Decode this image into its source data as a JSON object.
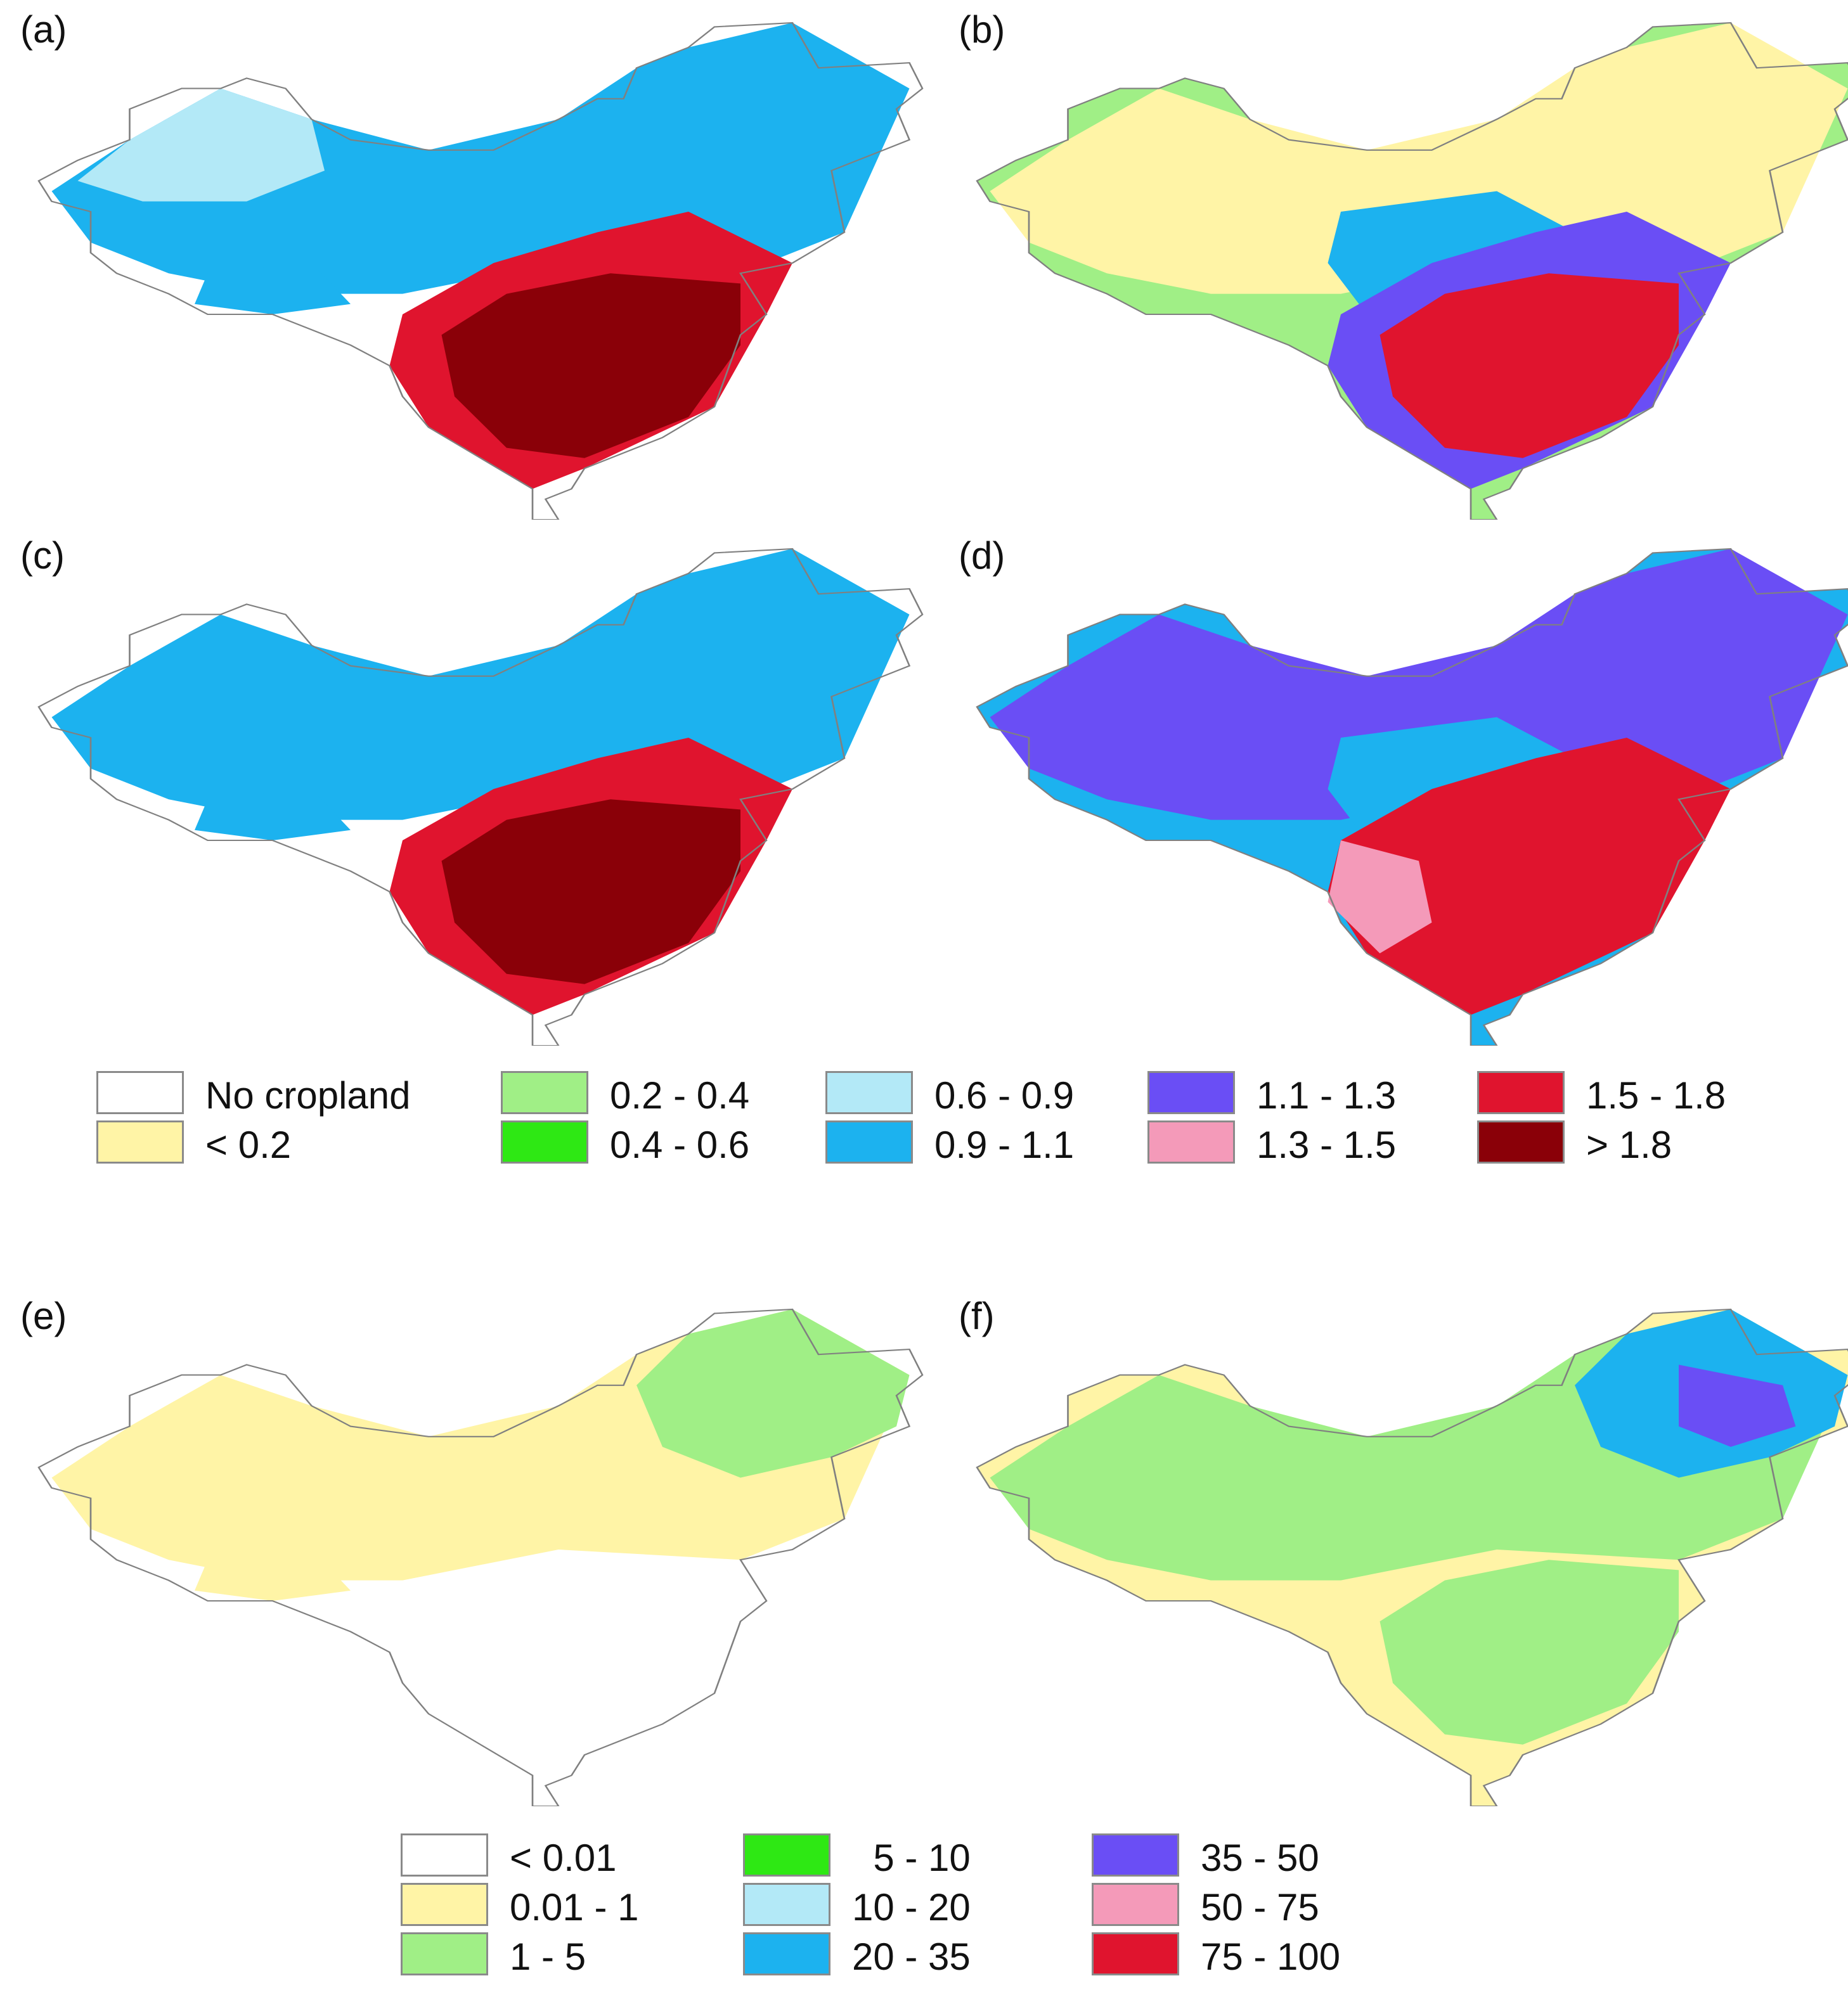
{
  "panels": [
    {
      "id": "a",
      "label": "(a)",
      "palette": "ratio",
      "fills": [
        {
          "color": "#1cb2ef",
          "shape": "north"
        },
        {
          "color": "#e0142e",
          "shape": "south"
        },
        {
          "color": "#8a0008",
          "shape": "southcore"
        },
        {
          "color": "#b3e9f7",
          "shape": "west"
        },
        {
          "color": "#1cb2ef",
          "shape": "westpatch"
        }
      ]
    },
    {
      "id": "b",
      "label": "(b)",
      "palette": "ratio",
      "fills": [
        {
          "color": "#a0ef86",
          "shape": "full"
        },
        {
          "color": "#fff4a6",
          "shape": "north"
        },
        {
          "color": "#1cb2ef",
          "shape": "center"
        },
        {
          "color": "#6a4ef5",
          "shape": "south"
        },
        {
          "color": "#e0142e",
          "shape": "southcore"
        }
      ]
    },
    {
      "id": "c",
      "label": "(c)",
      "palette": "ratio",
      "fills": [
        {
          "color": "#1cb2ef",
          "shape": "north"
        },
        {
          "color": "#e0142e",
          "shape": "south"
        },
        {
          "color": "#8a0008",
          "shape": "southcore"
        },
        {
          "color": "#1cb2ef",
          "shape": "westpatch"
        }
      ]
    },
    {
      "id": "d",
      "label": "(d)",
      "palette": "ratio",
      "fills": [
        {
          "color": "#1cb2ef",
          "shape": "full"
        },
        {
          "color": "#6a4ef5",
          "shape": "north"
        },
        {
          "color": "#1cb2ef",
          "shape": "center"
        },
        {
          "color": "#e0142e",
          "shape": "south"
        },
        {
          "color": "#f49ab9",
          "shape": "southwest"
        }
      ]
    },
    {
      "id": "e",
      "label": "(e)",
      "palette": "pct",
      "fills": [
        {
          "color": "#fff4a6",
          "shape": "north"
        },
        {
          "color": "#a0ef86",
          "shape": "northeast"
        },
        {
          "color": "#fff4a6",
          "shape": "westpatch"
        }
      ]
    },
    {
      "id": "f",
      "label": "(f)",
      "palette": "pct",
      "fills": [
        {
          "color": "#fff4a6",
          "shape": "full"
        },
        {
          "color": "#a0ef86",
          "shape": "north"
        },
        {
          "color": "#1cb2ef",
          "shape": "northeast"
        },
        {
          "color": "#6a4ef5",
          "shape": "northeastcore"
        },
        {
          "color": "#a0ef86",
          "shape": "southcore"
        }
      ]
    }
  ],
  "legend_ratio": [
    {
      "label": "No cropland",
      "color": "#ffffff"
    },
    {
      "label": "< 0.2",
      "color": "#fff4a6"
    },
    {
      "label": "0.2 - 0.4",
      "color": "#a0ef86"
    },
    {
      "label": "0.4 - 0.6",
      "color": "#2ee814"
    },
    {
      "label": "0.6 - 0.9",
      "color": "#b3e9f7"
    },
    {
      "label": "0.9 - 1.1",
      "color": "#1cb2ef"
    },
    {
      "label": "1.1 - 1.3",
      "color": "#6a4ef5"
    },
    {
      "label": "1.3 - 1.5",
      "color": "#f49ab9"
    },
    {
      "label": "1.5 - 1.8",
      "color": "#e0142e"
    },
    {
      "label": "> 1.8",
      "color": "#8a0008"
    }
  ],
  "legend_pct": [
    {
      "label": "< 0.01",
      "color": "#ffffff"
    },
    {
      "label": "0.01 - 1",
      "color": "#fff4a6"
    },
    {
      "label": "1 - 5",
      "color": "#a0ef86"
    },
    {
      "label": "  5 - 10",
      "color": "#2ee814"
    },
    {
      "label": "10 - 20",
      "color": "#b3e9f7"
    },
    {
      "label": "20 - 35",
      "color": "#1cb2ef"
    },
    {
      "label": "35 - 50",
      "color": "#6a4ef5"
    },
    {
      "label": "50 - 75",
      "color": "#f49ab9"
    },
    {
      "label": "75 - 100",
      "color": "#e0142e"
    }
  ]
}
